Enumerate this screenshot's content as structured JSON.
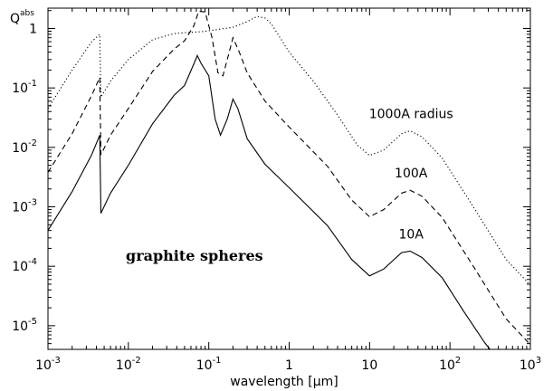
{
  "chart_data": {
    "type": "line",
    "title": "",
    "xlabel": "wavelength [μm]",
    "ylabel": "Q^abs",
    "xscale": "log",
    "yscale": "log",
    "xlim": [
      0.001,
      1000
    ],
    "ylim": [
      4e-06,
      2.2
    ],
    "x_ticks": [
      {
        "value": 0.001,
        "base": "10",
        "exp": "-3"
      },
      {
        "value": 0.01,
        "base": "10",
        "exp": "-2"
      },
      {
        "value": 0.1,
        "base": "10",
        "exp": "-1"
      },
      {
        "value": 1,
        "base": "1",
        "exp": ""
      },
      {
        "value": 10,
        "base": "10",
        "exp": ""
      },
      {
        "value": 100,
        "base": "10",
        "exp": "2"
      },
      {
        "value": 1000,
        "base": "10",
        "exp": "3"
      }
    ],
    "y_ticks": [
      {
        "value": 1e-05,
        "base": "10",
        "exp": "-5"
      },
      {
        "value": 0.0001,
        "base": "10",
        "exp": "-4"
      },
      {
        "value": 0.001,
        "base": "10",
        "exp": "-3"
      },
      {
        "value": 0.01,
        "base": "10",
        "exp": "-2"
      },
      {
        "value": 0.1,
        "base": "10",
        "exp": "-1"
      },
      {
        "value": 1,
        "base": "1",
        "exp": ""
      }
    ],
    "annotation": "graphite spheres",
    "series": [
      {
        "name": "10A",
        "dash": "solid",
        "points": [
          [
            0.001,
            0.0004
          ],
          [
            0.002,
            0.0018
          ],
          [
            0.0035,
            0.0075
          ],
          [
            0.0044,
            0.016
          ],
          [
            0.00455,
            0.00078
          ],
          [
            0.006,
            0.0017
          ],
          [
            0.01,
            0.005
          ],
          [
            0.02,
            0.025
          ],
          [
            0.037,
            0.075
          ],
          [
            0.05,
            0.11
          ],
          [
            0.065,
            0.25
          ],
          [
            0.072,
            0.35
          ],
          [
            0.08,
            0.26
          ],
          [
            0.1,
            0.16
          ],
          [
            0.12,
            0.03
          ],
          [
            0.14,
            0.016
          ],
          [
            0.17,
            0.03
          ],
          [
            0.2,
            0.065
          ],
          [
            0.23,
            0.045
          ],
          [
            0.3,
            0.014
          ],
          [
            0.5,
            0.0052
          ],
          [
            1,
            0.0021
          ],
          [
            3,
            0.00048
          ],
          [
            6,
            0.00013
          ],
          [
            10,
            6.9e-05
          ],
          [
            15,
            9e-05
          ],
          [
            25,
            0.00017
          ],
          [
            32,
            0.00018
          ],
          [
            45,
            0.00014
          ],
          [
            80,
            6.4e-05
          ],
          [
            150,
            1.7e-05
          ],
          [
            270,
            5.2e-06
          ],
          [
            340,
            3.5e-06
          ]
        ]
      },
      {
        "name": "100A",
        "dash": "dashed",
        "points": [
          [
            0.001,
            0.0038
          ],
          [
            0.002,
            0.017
          ],
          [
            0.0035,
            0.075
          ],
          [
            0.0044,
            0.15
          ],
          [
            0.00455,
            0.0075
          ],
          [
            0.006,
            0.016
          ],
          [
            0.01,
            0.045
          ],
          [
            0.02,
            0.19
          ],
          [
            0.037,
            0.45
          ],
          [
            0.05,
            0.62
          ],
          [
            0.065,
            1.1
          ],
          [
            0.075,
            1.95
          ],
          [
            0.09,
            1.9
          ],
          [
            0.11,
            0.7
          ],
          [
            0.13,
            0.18
          ],
          [
            0.15,
            0.16
          ],
          [
            0.17,
            0.3
          ],
          [
            0.2,
            0.7
          ],
          [
            0.24,
            0.4
          ],
          [
            0.3,
            0.18
          ],
          [
            0.5,
            0.06
          ],
          [
            1,
            0.022
          ],
          [
            3,
            0.0048
          ],
          [
            6,
            0.0013
          ],
          [
            10,
            0.00068
          ],
          [
            15,
            0.0009
          ],
          [
            25,
            0.0017
          ],
          [
            32,
            0.0019
          ],
          [
            45,
            0.0015
          ],
          [
            80,
            0.00066
          ],
          [
            200,
            9.5e-05
          ],
          [
            500,
            1.3e-05
          ],
          [
            1000,
            4.8e-06
          ]
        ]
      },
      {
        "name": "1000A radius",
        "dash": "dotted",
        "points": [
          [
            0.001,
            0.045
          ],
          [
            0.002,
            0.2
          ],
          [
            0.0035,
            0.6
          ],
          [
            0.0044,
            0.8
          ],
          [
            0.00455,
            0.07
          ],
          [
            0.006,
            0.13
          ],
          [
            0.01,
            0.3
          ],
          [
            0.02,
            0.65
          ],
          [
            0.037,
            0.82
          ],
          [
            0.05,
            0.85
          ],
          [
            0.08,
            0.88
          ],
          [
            0.12,
            0.95
          ],
          [
            0.2,
            1.05
          ],
          [
            0.3,
            1.3
          ],
          [
            0.4,
            1.6
          ],
          [
            0.5,
            1.5
          ],
          [
            0.6,
            1.2
          ],
          [
            1,
            0.4
          ],
          [
            2,
            0.13
          ],
          [
            4,
            0.035
          ],
          [
            7,
            0.011
          ],
          [
            10,
            0.0073
          ],
          [
            15,
            0.009
          ],
          [
            25,
            0.017
          ],
          [
            32,
            0.019
          ],
          [
            45,
            0.015
          ],
          [
            80,
            0.0066
          ],
          [
            200,
            0.00095
          ],
          [
            500,
            0.00013
          ],
          [
            1000,
            4.8e-05
          ]
        ]
      }
    ]
  }
}
